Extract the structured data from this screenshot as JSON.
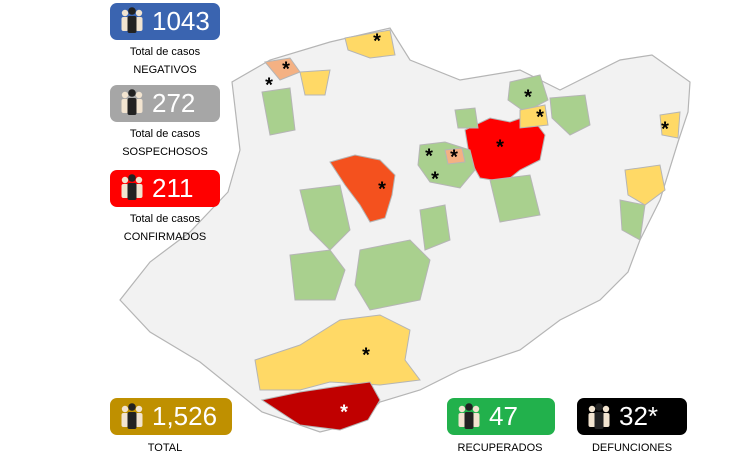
{
  "stats": [
    {
      "value": "1043",
      "line1": "Total de casos",
      "line2": "NEGATIVOS"
    },
    {
      "value": "272",
      "line1": "Total de casos",
      "line2": "SOSPECHOSOS"
    },
    {
      "value": "211",
      "line1": "Total de casos",
      "line2": "CONFIRMADOS"
    }
  ],
  "totals": [
    {
      "value": "1,526",
      "label": "TOTAL"
    },
    {
      "value": "47",
      "label": "RECUPERADOS"
    },
    {
      "value": "32*",
      "label": "DEFUNCIONES"
    }
  ],
  "map_markers": [
    "*",
    "*",
    "*",
    "*",
    "*",
    "*",
    "*",
    "*",
    "*",
    "*",
    "*",
    "*",
    "*"
  ]
}
